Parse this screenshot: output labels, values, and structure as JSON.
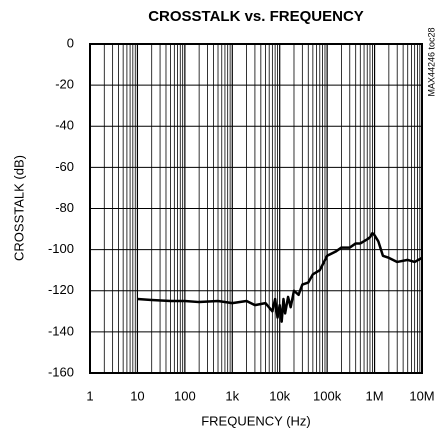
{
  "chart_data": {
    "type": "line",
    "title": "CROSSTALK vs. FREQUENCY",
    "x_label": "FREQUENCY (Hz)",
    "y_label": "CROSSTALK (dB)",
    "note": "MAX44246 toc28",
    "xscale": "log",
    "grid": true,
    "minor_grid": true,
    "xlim": [
      1,
      10000000
    ],
    "xticks": [
      1,
      10,
      100,
      {
        "value": 1000,
        "label": "1k"
      },
      {
        "value": 10000,
        "label": "10k"
      },
      {
        "value": 100000,
        "label": "100k"
      },
      {
        "value": 1000000,
        "label": "1M"
      },
      {
        "value": 10000000,
        "label": "10M"
      }
    ],
    "ylim": [
      -160,
      0
    ],
    "yticks": [
      -160,
      -140,
      -120,
      -100,
      -80,
      -60,
      -40,
      -20,
      0
    ],
    "series": [
      {
        "color": "#000000",
        "x": [
          10,
          20,
          50,
          100,
          200,
          500,
          1000,
          2000,
          3000,
          5000,
          7000,
          8000,
          9000,
          10000,
          11000,
          12000,
          13000,
          15000,
          17000,
          20000,
          25000,
          30000,
          40000,
          50000,
          70000,
          100000,
          150000,
          200000,
          300000,
          400000,
          500000,
          700000,
          800000,
          900000,
          1000000,
          1200000,
          1500000,
          2000000,
          3000000,
          5000000,
          7000000,
          10000000
        ],
        "values": [
          -124,
          -124.5,
          -125,
          -125,
          -125.5,
          -125,
          -126,
          -125,
          -127,
          -126,
          -130,
          -124,
          -133,
          -127,
          -135,
          -124,
          -131,
          -123,
          -128,
          -120,
          -122,
          -117,
          -116,
          -112,
          -110,
          -103,
          -101,
          -99,
          -99,
          -97,
          -97,
          -95,
          -94,
          -92,
          -93,
          -96,
          -103,
          -104,
          -106,
          -105,
          -106,
          -104
        ]
      }
    ]
  }
}
